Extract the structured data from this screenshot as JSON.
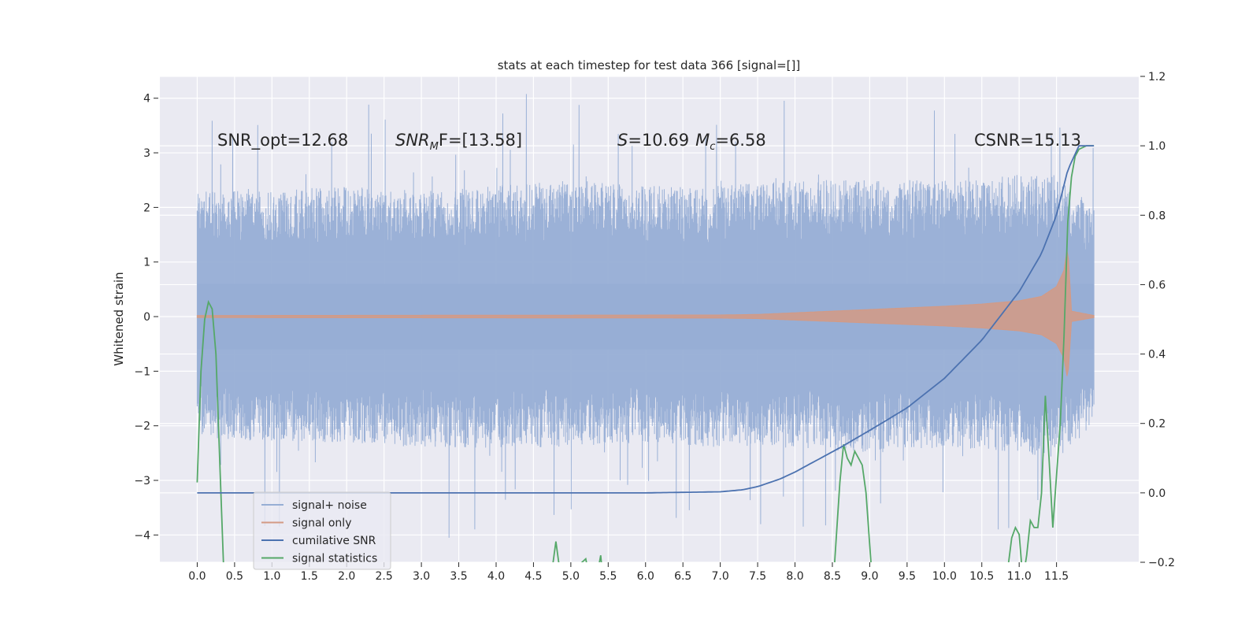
{
  "chart_data": {
    "type": "line",
    "title": "stats at each timestep for test data 366 [signal=[]]",
    "xlabel": "",
    "ylabel": "Whitened strain",
    "ylabel_right": "",
    "xlim": [
      -0.5,
      12.6
    ],
    "ylim": [
      -4.5,
      4.4
    ],
    "ylim_right": [
      -0.2,
      1.2
    ],
    "x_ticks": [
      0,
      0.5,
      1,
      1.5,
      2,
      2.5,
      3,
      3.5,
      4,
      4.5,
      5,
      5.5,
      6,
      6.5,
      7,
      7.5,
      8,
      8.5,
      9,
      9.5,
      10,
      10.5,
      11,
      11.5
    ],
    "x_tick_labels": [
      "0.0",
      "0.5",
      "1.0",
      "1.5",
      "2.0",
      "2.5",
      "3.0",
      "3.5",
      "4.0",
      "4.5",
      "5.0",
      "5.5",
      "6.0",
      "6.5",
      "7.0",
      "7.5",
      "8.0",
      "8.5",
      "9.0",
      "9.5",
      "10.0",
      "10.5",
      "11.0",
      "11.5"
    ],
    "y_ticks": [
      -4,
      -3,
      -2,
      -1,
      0,
      1,
      2,
      3,
      4
    ],
    "y_tick_labels": [
      "−4",
      "−3",
      "−2",
      "−1",
      "0",
      "1",
      "2",
      "3",
      "4"
    ],
    "y_ticks_right": [
      -0.2,
      0.0,
      0.2,
      0.4,
      0.6,
      0.8,
      1.0,
      1.2
    ],
    "y_tick_labels_right": [
      "−0.2",
      "0.0",
      "0.2",
      "0.4",
      "0.6",
      "0.8",
      "1.0",
      "1.2"
    ],
    "grid": true,
    "legend_position": "lower-left",
    "annotations": {
      "snr_opt": "SNR_opt=12.68",
      "snr_mf_main": "SNR",
      "snr_mf_sub": "M",
      "snr_mf_rest": "F=[13.58]",
      "s_main": "S",
      "s_rest": "=10.69",
      "mc_main": "M",
      "mc_sub": "c",
      "mc_rest": "=6.58",
      "csnr": "CSNR=15.13"
    },
    "series": [
      {
        "name": "signal+ noise",
        "color": "#97aed5",
        "axis": "left",
        "x_range": [
          0,
          12.0
        ],
        "typical_amplitude": 1.9,
        "peak_amplitude": 4.1,
        "envelope_x": [
          0,
          1,
          2,
          3,
          4,
          5,
          6,
          7,
          8,
          9,
          10,
          11,
          11.5,
          12.0
        ],
        "envelope_upper": [
          2.3,
          2.3,
          2.4,
          2.3,
          2.4,
          2.5,
          2.4,
          2.4,
          2.5,
          2.5,
          2.5,
          2.6,
          2.6,
          2.0
        ],
        "envelope_lower": [
          -2.2,
          -2.3,
          -2.3,
          -2.4,
          -2.4,
          -2.4,
          -2.3,
          -2.4,
          -2.4,
          -2.5,
          -2.4,
          -2.5,
          -2.6,
          -2.0
        ]
      },
      {
        "name": "signal only",
        "color": "#d49a84",
        "axis": "left",
        "x": [
          0,
          7.0,
          7.5,
          8.0,
          8.5,
          9.0,
          9.5,
          10.0,
          10.5,
          11.0,
          11.3,
          11.5,
          11.6,
          11.65,
          11.7,
          12.0
        ],
        "amplitude": [
          0.02,
          0.03,
          0.04,
          0.07,
          0.1,
          0.13,
          0.16,
          0.19,
          0.23,
          0.29,
          0.37,
          0.55,
          0.85,
          1.3,
          0.1,
          0.02
        ]
      },
      {
        "name": "cumilative SNR",
        "color": "#4c72b0",
        "axis": "right",
        "x": [
          0,
          6.0,
          7.0,
          7.3,
          7.5,
          7.8,
          8.0,
          8.3,
          8.6,
          9.0,
          9.5,
          10.0,
          10.5,
          11.0,
          11.3,
          11.5,
          11.65,
          11.8,
          12.0
        ],
        "values": [
          0.0,
          0.0,
          0.003,
          0.009,
          0.018,
          0.04,
          0.06,
          0.095,
          0.13,
          0.18,
          0.245,
          0.33,
          0.44,
          0.58,
          0.69,
          0.8,
          0.93,
          1.0,
          1.0
        ]
      },
      {
        "name": "signal statistics",
        "color": "#55a868",
        "axis": "right",
        "x": [
          0,
          0.05,
          0.1,
          0.15,
          0.2,
          0.25,
          0.3,
          0.35,
          0.4,
          0.45,
          4.7,
          4.8,
          4.9,
          5.1,
          5.2,
          5.3,
          5.4,
          5.45,
          5.5,
          8.5,
          8.6,
          8.65,
          8.7,
          8.75,
          8.8,
          8.85,
          8.9,
          8.95,
          9.0,
          9.05,
          10.8,
          10.9,
          10.95,
          11.0,
          11.05,
          11.1,
          11.15,
          11.2,
          11.25,
          11.3,
          11.35,
          11.4,
          11.45,
          11.5,
          11.55,
          11.6,
          11.65,
          11.7,
          11.75,
          11.8,
          11.9,
          12.0
        ],
        "values": [
          0.03,
          0.35,
          0.5,
          0.55,
          0.53,
          0.4,
          0.1,
          -0.2,
          -0.3,
          -0.3,
          -0.3,
          -0.14,
          -0.3,
          -0.21,
          -0.19,
          -0.3,
          -0.18,
          -0.3,
          -0.3,
          -0.3,
          0.03,
          0.14,
          0.1,
          0.08,
          0.12,
          0.1,
          0.08,
          0.0,
          -0.15,
          -0.3,
          -0.3,
          -0.13,
          -0.1,
          -0.12,
          -0.25,
          -0.18,
          -0.08,
          -0.1,
          -0.1,
          0.0,
          0.28,
          0.1,
          -0.1,
          0.05,
          0.2,
          0.45,
          0.78,
          0.91,
          0.97,
          0.99,
          1.0,
          1.0
        ]
      }
    ]
  }
}
